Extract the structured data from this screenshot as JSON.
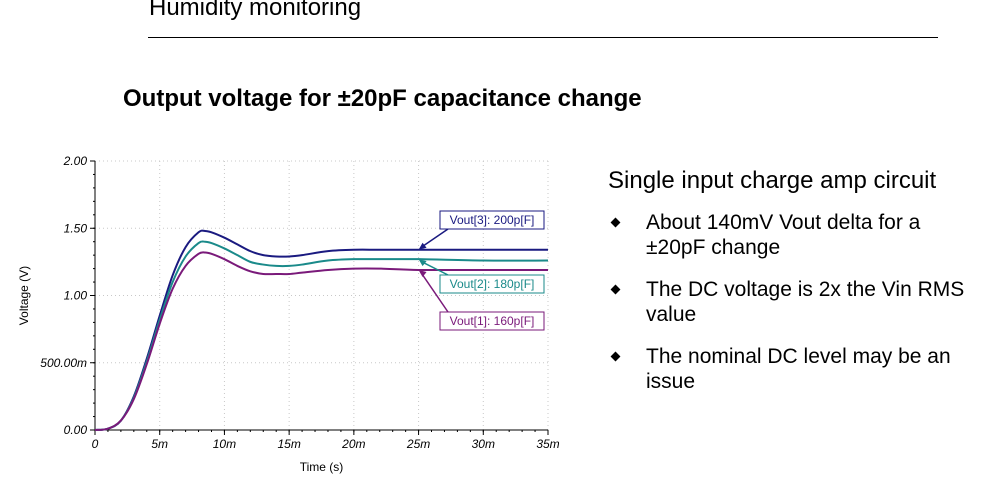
{
  "header": {
    "title": "Humidity monitoring"
  },
  "slide": {
    "title": "Output voltage for ±20pF capacitance change"
  },
  "notes": {
    "title": "Single input charge amp circuit",
    "items": [
      "About 140mV Vout delta for a ±20pF change",
      "The DC voltage is 2x the Vin RMS value",
      "The nominal DC level may be an issue"
    ]
  },
  "chart_data": {
    "type": "line",
    "title": "",
    "xlabel": "Time (s)",
    "ylabel": "Voltage (V)",
    "xlim": [
      0,
      0.035
    ],
    "ylim": [
      0,
      2.0
    ],
    "x_ticks": [
      0,
      0.005,
      0.01,
      0.015,
      0.02,
      0.025,
      0.03,
      0.035
    ],
    "x_tick_labels": [
      "0",
      "5m",
      "10m",
      "15m",
      "20m",
      "25m",
      "30m",
      "35m"
    ],
    "y_ticks": [
      0,
      0.5,
      1.0,
      1.5,
      2.0
    ],
    "y_tick_labels": [
      "0.00",
      "500.00m",
      "1.00",
      "1.50",
      "2.00"
    ],
    "grid": true,
    "series": [
      {
        "name": "Vout[3]: 200p[F]",
        "color": "#1a1a80",
        "x": [
          0,
          0.001,
          0.002,
          0.003,
          0.004,
          0.005,
          0.006,
          0.007,
          0.008,
          0.0085,
          0.009,
          0.01,
          0.011,
          0.012,
          0.013,
          0.014,
          0.015,
          0.016,
          0.018,
          0.02,
          0.022,
          0.025,
          0.03,
          0.035
        ],
        "y": [
          0,
          0.01,
          0.07,
          0.25,
          0.53,
          0.85,
          1.15,
          1.36,
          1.47,
          1.48,
          1.47,
          1.43,
          1.38,
          1.33,
          1.3,
          1.29,
          1.29,
          1.3,
          1.33,
          1.34,
          1.34,
          1.34,
          1.34,
          1.34
        ]
      },
      {
        "name": "Vout[2]: 180p[F]",
        "color": "#1a8a8a",
        "x": [
          0,
          0.001,
          0.002,
          0.003,
          0.004,
          0.005,
          0.006,
          0.007,
          0.008,
          0.0085,
          0.009,
          0.01,
          0.011,
          0.012,
          0.013,
          0.014,
          0.015,
          0.016,
          0.018,
          0.02,
          0.022,
          0.025,
          0.03,
          0.035
        ],
        "y": [
          0,
          0.01,
          0.07,
          0.24,
          0.51,
          0.82,
          1.1,
          1.29,
          1.39,
          1.4,
          1.39,
          1.35,
          1.3,
          1.25,
          1.23,
          1.22,
          1.22,
          1.23,
          1.26,
          1.27,
          1.27,
          1.27,
          1.26,
          1.26
        ]
      },
      {
        "name": "Vout[1]: 160p[F]",
        "color": "#7a1a7a",
        "x": [
          0,
          0.001,
          0.002,
          0.003,
          0.004,
          0.005,
          0.006,
          0.007,
          0.008,
          0.0085,
          0.009,
          0.01,
          0.011,
          0.012,
          0.013,
          0.014,
          0.015,
          0.016,
          0.018,
          0.02,
          0.022,
          0.025,
          0.03,
          0.035
        ],
        "y": [
          0,
          0.01,
          0.07,
          0.23,
          0.49,
          0.79,
          1.05,
          1.22,
          1.31,
          1.32,
          1.31,
          1.27,
          1.22,
          1.18,
          1.16,
          1.16,
          1.16,
          1.17,
          1.19,
          1.2,
          1.2,
          1.19,
          1.19,
          1.19
        ]
      }
    ],
    "annotations": [
      {
        "text": "Vout[3]: 200p[F]",
        "series": 0,
        "x": 0.025
      },
      {
        "text": "Vout[2]: 180p[F]",
        "series": 1,
        "x": 0.025
      },
      {
        "text": "Vout[1]: 160p[F]",
        "series": 2,
        "x": 0.025
      }
    ]
  }
}
